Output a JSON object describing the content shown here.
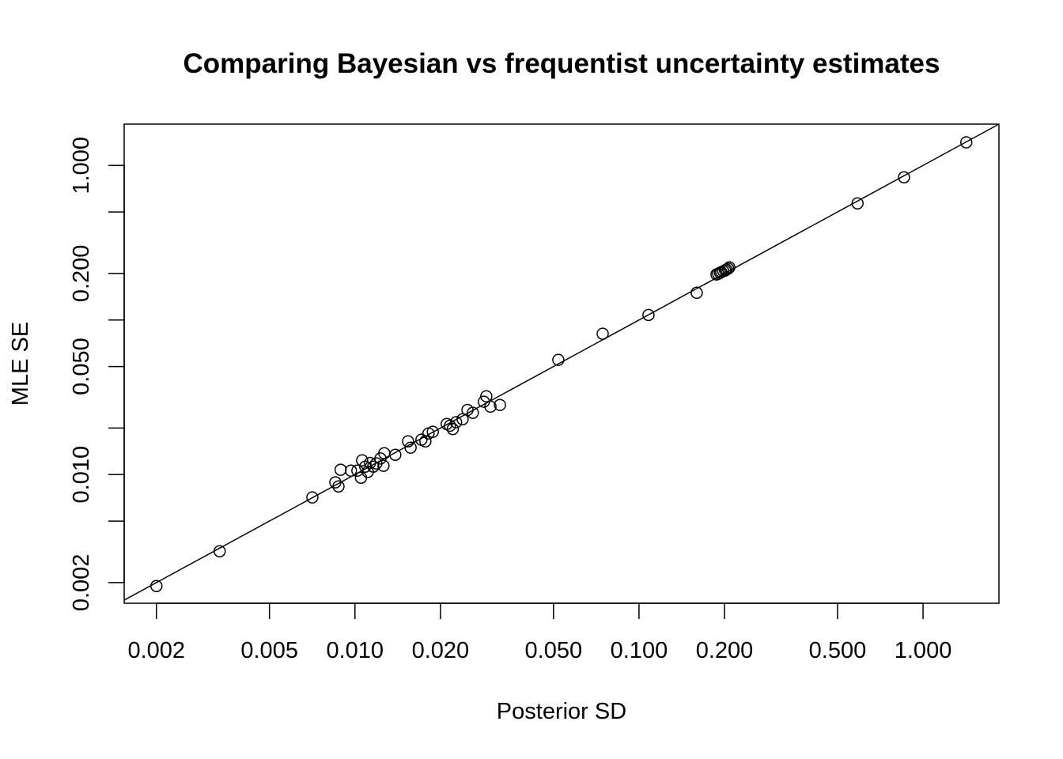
{
  "chart_data": {
    "type": "scatter",
    "title": "Comparing Bayesian vs frequentist uncertainty estimates",
    "xlabel": "Posterior SD",
    "ylabel": "MLE SE",
    "xscale": "log",
    "yscale": "log",
    "xlim": [
      0.00154,
      1.85
    ],
    "ylim": [
      0.00147,
      1.85
    ],
    "grid": false,
    "legend": "none",
    "reference_line": "y = x",
    "marker": "open-circle",
    "color": "#000000",
    "x_ticks": [
      0.002,
      0.005,
      0.01,
      0.02,
      0.05,
      0.1,
      0.2,
      0.5,
      1.0
    ],
    "x_tick_labels": [
      "0.002",
      "0.005",
      "0.010",
      "0.020",
      "0.050",
      "0.100",
      "0.200",
      "0.500",
      "1.000"
    ],
    "y_ticks": [
      0.002,
      0.005,
      0.01,
      0.02,
      0.05,
      0.1,
      0.2,
      0.5,
      1.0
    ],
    "y_tick_labels": [
      "0.002",
      "",
      "0.010",
      "",
      "0.050",
      "",
      "0.200",
      "",
      "1.000"
    ],
    "points": [
      [
        0.002,
        0.0019
      ],
      [
        0.00334,
        0.00319
      ],
      [
        0.00708,
        0.00711
      ],
      [
        0.00853,
        0.0089
      ],
      [
        0.00875,
        0.00838
      ],
      [
        0.0089,
        0.01074
      ],
      [
        0.00968,
        0.0106
      ],
      [
        0.0102,
        0.0106
      ],
      [
        0.0105,
        0.00954
      ],
      [
        0.0106,
        0.01236
      ],
      [
        0.01087,
        0.01125
      ],
      [
        0.0111,
        0.0104
      ],
      [
        0.0113,
        0.0119
      ],
      [
        0.0116,
        0.01125
      ],
      [
        0.0119,
        0.0118
      ],
      [
        0.0123,
        0.0127
      ],
      [
        0.0126,
        0.0114
      ],
      [
        0.01268,
        0.01374
      ],
      [
        0.01387,
        0.01342
      ],
      [
        0.01538,
        0.0164
      ],
      [
        0.0157,
        0.01493
      ],
      [
        0.01714,
        0.0168
      ],
      [
        0.0177,
        0.0164
      ],
      [
        0.01815,
        0.01845
      ],
      [
        0.0188,
        0.0189
      ],
      [
        0.02104,
        0.02123
      ],
      [
        0.0216,
        0.0207
      ],
      [
        0.0221,
        0.0197
      ],
      [
        0.0227,
        0.0218
      ],
      [
        0.02393,
        0.0228
      ],
      [
        0.0249,
        0.0262
      ],
      [
        0.026,
        0.0251
      ],
      [
        0.02843,
        0.0296
      ],
      [
        0.029,
        0.0321
      ],
      [
        0.03,
        0.0275
      ],
      [
        0.0324,
        0.0282
      ],
      [
        0.052,
        0.0552
      ],
      [
        0.0745,
        0.0815
      ],
      [
        0.108,
        0.1078
      ],
      [
        0.1597,
        0.15
      ],
      [
        0.1875,
        0.197
      ],
      [
        0.19,
        0.199
      ],
      [
        0.193,
        0.202
      ],
      [
        0.195,
        0.204
      ],
      [
        0.198,
        0.207
      ],
      [
        0.201,
        0.209
      ],
      [
        0.203,
        0.212
      ],
      [
        0.206,
        0.215
      ],
      [
        0.208,
        0.219
      ],
      [
        0.588,
        0.568
      ],
      [
        0.857,
        0.838
      ],
      [
        1.42,
        1.41
      ]
    ]
  }
}
